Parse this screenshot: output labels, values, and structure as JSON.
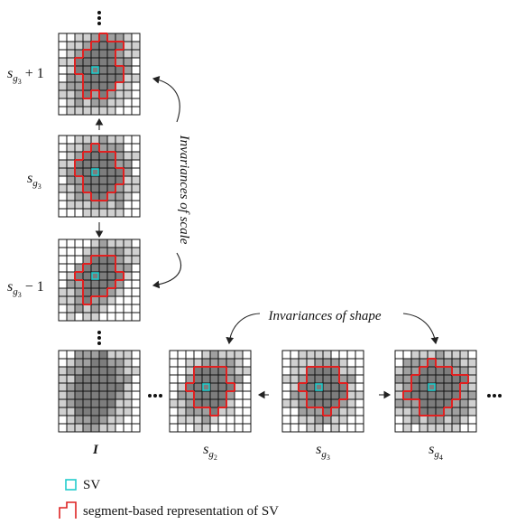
{
  "labels": {
    "scale_up": {
      "base": "s",
      "sub": "g",
      "subsub": "3",
      "rest": "+ 1"
    },
    "scale_mid": {
      "base": "s",
      "sub": "g",
      "subsub": "3"
    },
    "scale_down": {
      "base": "s",
      "sub": "g",
      "subsub": "3",
      "rest": "− 1"
    },
    "image": "I",
    "shape_left": {
      "base": "s",
      "sub": "g",
      "subsub": "2"
    },
    "shape_mid": {
      "base": "s",
      "sub": "g",
      "subsub": "3"
    },
    "shape_right": {
      "base": "s",
      "sub": "g",
      "subsub": "4"
    }
  },
  "annotations": {
    "scale": "Invariances of scale",
    "shape": "Invariances of shape"
  },
  "legend": {
    "sv": "SV",
    "segment": "segment-based representation of SV"
  }
}
